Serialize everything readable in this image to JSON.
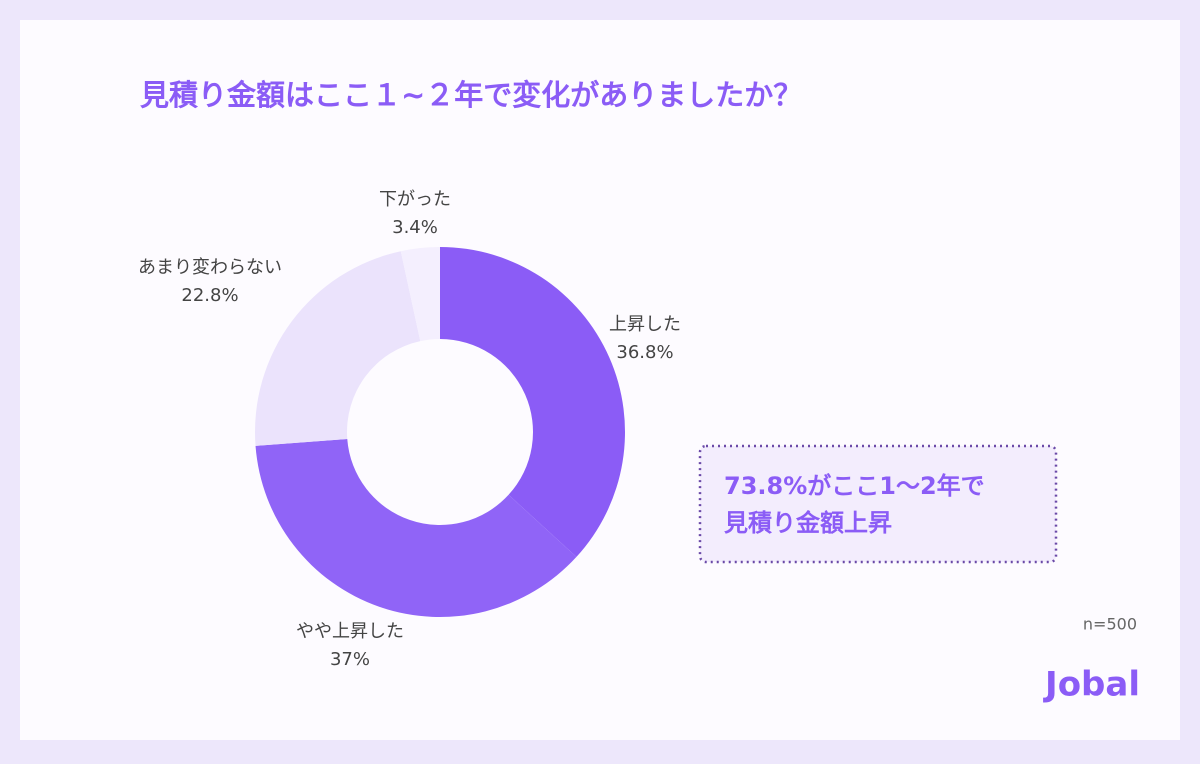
{
  "chart_data": {
    "type": "donut",
    "title": "見積り金額はここ１~２年で変化がありましたか？",
    "categories": [
      "上昇した",
      "やや上昇した",
      "あまり変わらない",
      "下がった"
    ],
    "values": [
      36.8,
      37,
      22.8,
      3.4
    ],
    "value_labels": [
      "36.8%",
      "37%",
      "22.8%",
      "3.4%"
    ],
    "colors": [
      "#8b5cf6",
      "#9064f7",
      "#ebe3fc",
      "#f4effe"
    ],
    "annotation": [
      "73.8%がここ1〜2年で",
      "見積り金額上昇"
    ],
    "note": "n=500",
    "logo": "Jobal"
  }
}
